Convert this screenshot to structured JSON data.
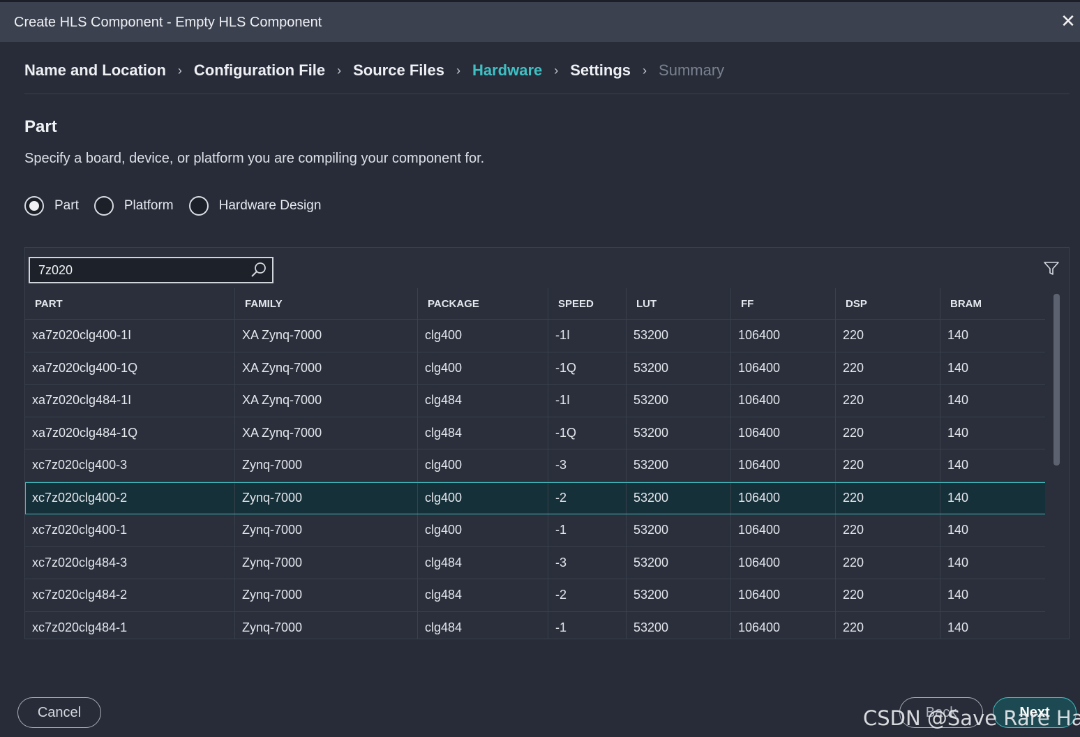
{
  "window": {
    "title": "Create HLS Component - Empty HLS Component",
    "close_glyph": "✕"
  },
  "steps": [
    {
      "label": "Name and Location",
      "state": "done"
    },
    {
      "label": "Configuration File",
      "state": "done"
    },
    {
      "label": "Source Files",
      "state": "done"
    },
    {
      "label": "Hardware",
      "state": "active"
    },
    {
      "label": "Settings",
      "state": "pending"
    },
    {
      "label": "Summary",
      "state": "disabled"
    }
  ],
  "chevron": "›",
  "section": {
    "title": "Part",
    "description": "Specify a board, device, or platform you are compiling your component for."
  },
  "target_options": [
    {
      "label": "Part",
      "checked": true
    },
    {
      "label": "Platform",
      "checked": false
    },
    {
      "label": "Hardware Design",
      "checked": false
    }
  ],
  "search": {
    "value": "7z020"
  },
  "table": {
    "columns": [
      "PART",
      "FAMILY",
      "PACKAGE",
      "SPEED",
      "LUT",
      "FF",
      "DSP",
      "BRAM"
    ],
    "rows": [
      [
        "xa7z020clg400-1I",
        "XA Zynq-7000",
        "clg400",
        "-1I",
        "53200",
        "106400",
        "220",
        "140"
      ],
      [
        "xa7z020clg400-1Q",
        "XA Zynq-7000",
        "clg400",
        "-1Q",
        "53200",
        "106400",
        "220",
        "140"
      ],
      [
        "xa7z020clg484-1I",
        "XA Zynq-7000",
        "clg484",
        "-1I",
        "53200",
        "106400",
        "220",
        "140"
      ],
      [
        "xa7z020clg484-1Q",
        "XA Zynq-7000",
        "clg484",
        "-1Q",
        "53200",
        "106400",
        "220",
        "140"
      ],
      [
        "xc7z020clg400-3",
        "Zynq-7000",
        "clg400",
        "-3",
        "53200",
        "106400",
        "220",
        "140"
      ],
      [
        "xc7z020clg400-2",
        "Zynq-7000",
        "clg400",
        "-2",
        "53200",
        "106400",
        "220",
        "140"
      ],
      [
        "xc7z020clg400-1",
        "Zynq-7000",
        "clg400",
        "-1",
        "53200",
        "106400",
        "220",
        "140"
      ],
      [
        "xc7z020clg484-3",
        "Zynq-7000",
        "clg484",
        "-3",
        "53200",
        "106400",
        "220",
        "140"
      ],
      [
        "xc7z020clg484-2",
        "Zynq-7000",
        "clg484",
        "-2",
        "53200",
        "106400",
        "220",
        "140"
      ],
      [
        "xc7z020clg484-1",
        "Zynq-7000",
        "clg484",
        "-1",
        "53200",
        "106400",
        "220",
        "140"
      ]
    ],
    "selected_part": "xc7z020clg400-2"
  },
  "footer": {
    "cancel_label": "Cancel",
    "back_label": "Back",
    "next_label": "Next"
  },
  "watermark": "CSDN @Save Rare Hair",
  "colors": {
    "accent": "#3ec0c4",
    "background": "#272c38",
    "titlebar": "#3b414f",
    "selected_row": "#163039"
  },
  "icons": {
    "search": "search-icon",
    "filter": "filter-icon",
    "close": "close-icon",
    "step_separator": "chevron-right-icon"
  }
}
